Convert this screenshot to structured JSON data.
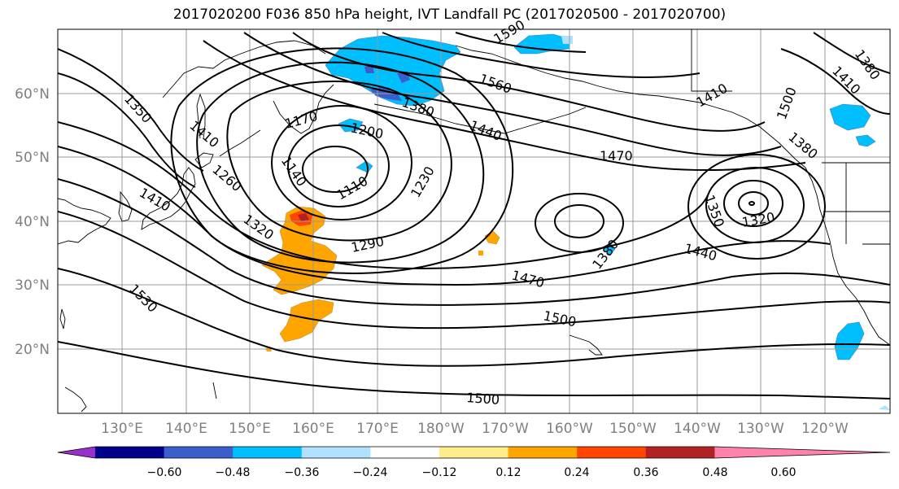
{
  "title": "2017020200 F036 850 hPa height, IVT Landfall PC (2017020500 - 2017020700)",
  "lat_labels": [
    "60°N",
    "50°N",
    "40°N",
    "30°N",
    "20°N"
  ],
  "lon_labels": [
    "130°E",
    "140°E",
    "150°E",
    "160°E",
    "170°E",
    "180°W",
    "170°W",
    "160°W",
    "150°W",
    "140°W",
    "130°W",
    "120°W"
  ],
  "contour_labels": [
    "1590",
    "1560",
    "1380",
    "1440",
    "1470",
    "1350",
    "1170",
    "1200",
    "1140",
    "1260",
    "1110",
    "1230",
    "1410",
    "1320",
    "1290",
    "1530",
    "1470",
    "1500",
    "1500",
    "1380",
    "1440",
    "1350",
    "1320",
    "1380",
    "1500",
    "1410",
    "1380",
    "1410",
    "1410"
  ],
  "colorbar": {
    "colors": [
      "#9932cc",
      "#00008b",
      "#3a5fcd",
      "#00bfff",
      "#b0e2ff",
      "#ffffff",
      "#ffec8b",
      "#ffa500",
      "#ff4500",
      "#b22222",
      "#ff82ab"
    ],
    "tick_labels": [
      "−0.60",
      "−0.48",
      "−0.36",
      "−0.24",
      "−0.12",
      "0.12",
      "0.24",
      "0.36",
      "0.48",
      "0.60"
    ]
  }
}
